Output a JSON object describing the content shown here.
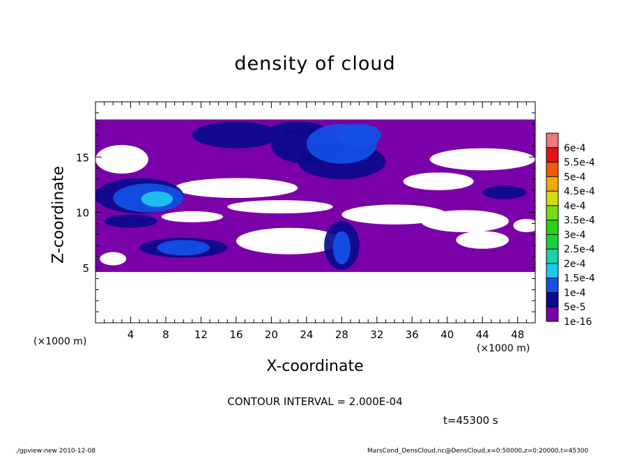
{
  "chart_data": {
    "type": "heatmap",
    "title": "density of cloud",
    "xlabel": "X-coordinate",
    "ylabel": "Z-coordinate",
    "x_unit": "(×1000 m)",
    "xlim": [
      0,
      50
    ],
    "ylim": [
      0,
      20
    ],
    "x_ticks": [
      4,
      8,
      12,
      16,
      20,
      24,
      28,
      32,
      36,
      40,
      44,
      48
    ],
    "y_ticks": [
      5,
      10,
      15
    ],
    "colorbar": {
      "levels": [
        "1e-16",
        "5e-5",
        "1e-4",
        "1.5e-4",
        "2e-4",
        "2.5e-4",
        "3e-4",
        "3.5e-4",
        "4e-4",
        "4.5e-4",
        "5e-4",
        "5.5e-4",
        "6e-4"
      ],
      "colors": [
        "#7a00a8",
        "#0a0a8c",
        "#1450e6",
        "#1ec8f0",
        "#19d2aa",
        "#14d23c",
        "#28d214",
        "#78dc14",
        "#d2dc14",
        "#f0aa0a",
        "#f05a0a",
        "#e61414",
        "#f07878"
      ]
    },
    "cloud_base_z": 4.6,
    "cloud_top_z": 18.4,
    "regions": [
      {
        "level": 1,
        "x": 16,
        "z": 17.0,
        "rx": 5.0,
        "rz": 1.2
      },
      {
        "level": 1,
        "x": 24,
        "z": 16.0,
        "rx": 4.0,
        "rz": 1.6
      },
      {
        "level": 2,
        "x": 28,
        "z": 16.2,
        "rx": 4.0,
        "rz": 1.8
      },
      {
        "level": 1,
        "x": 28,
        "z": 14.6,
        "rx": 5.0,
        "rz": 1.6
      },
      {
        "level": 2,
        "x": 30,
        "z": 17.0,
        "rx": 2.5,
        "rz": 1.0
      },
      {
        "level": 1,
        "x": 5,
        "z": 11.5,
        "rx": 5.0,
        "rz": 1.6
      },
      {
        "level": 2,
        "x": 6,
        "z": 11.3,
        "rx": 4.0,
        "rz": 1.3
      },
      {
        "level": 3,
        "x": 7,
        "z": 11.2,
        "rx": 1.8,
        "rz": 0.7
      },
      {
        "level": 1,
        "x": 10,
        "z": 6.8,
        "rx": 5.0,
        "rz": 0.9
      },
      {
        "level": 2,
        "x": 10,
        "z": 6.8,
        "rx": 3.0,
        "rz": 0.7
      },
      {
        "level": 1,
        "x": 28,
        "z": 7.0,
        "rx": 2.0,
        "rz": 2.2
      },
      {
        "level": 2,
        "x": 28,
        "z": 6.8,
        "rx": 1.0,
        "rz": 1.5
      },
      {
        "level": 1,
        "x": 46.5,
        "z": 11.8,
        "rx": 2.5,
        "rz": 0.6
      },
      {
        "level": 1,
        "x": 4,
        "z": 9.2,
        "rx": 3.0,
        "rz": 0.6
      },
      {
        "level": 1,
        "x": 23,
        "z": 17.6,
        "rx": 3.0,
        "rz": 0.6
      }
    ],
    "clear_regions": [
      {
        "x": 3,
        "z": 14.8,
        "rx": 3.0,
        "rz": 1.3
      },
      {
        "x": 16,
        "z": 12.2,
        "rx": 7.0,
        "rz": 0.9
      },
      {
        "x": 21,
        "z": 10.5,
        "rx": 6.0,
        "rz": 0.6
      },
      {
        "x": 22,
        "z": 7.4,
        "rx": 6.0,
        "rz": 1.2
      },
      {
        "x": 34,
        "z": 9.8,
        "rx": 6.0,
        "rz": 0.9
      },
      {
        "x": 42,
        "z": 9.2,
        "rx": 5.0,
        "rz": 1.0
      },
      {
        "x": 39,
        "z": 12.8,
        "rx": 4.0,
        "rz": 0.8
      },
      {
        "x": 44,
        "z": 14.8,
        "rx": 6.0,
        "rz": 1.0
      },
      {
        "x": 44,
        "z": 7.5,
        "rx": 3.0,
        "rz": 0.8
      },
      {
        "x": 11,
        "z": 9.6,
        "rx": 3.5,
        "rz": 0.5
      },
      {
        "x": 2,
        "z": 5.8,
        "rx": 1.5,
        "rz": 0.6
      },
      {
        "x": 49,
        "z": 8.8,
        "rx": 1.5,
        "rz": 0.6
      }
    ]
  },
  "annotations": {
    "contour_interval": "CONTOUR INTERVAL = 2.000E-04",
    "time": "t=45300 s"
  },
  "footer": {
    "left": "./gpview-new  2010-12-08",
    "right": "MarsCond_DensCloud.nc@DensCloud,x=0:50000,z=0:20000,t=45300"
  }
}
